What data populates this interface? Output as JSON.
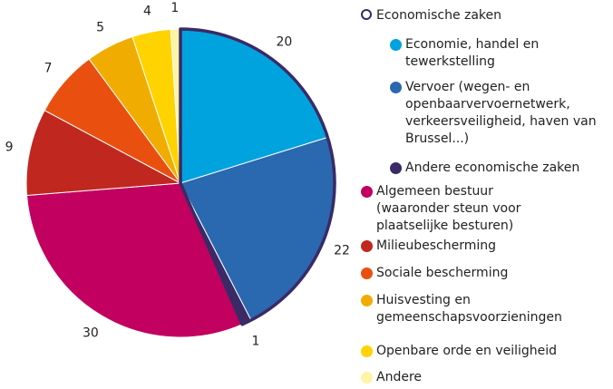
{
  "chart_data": {
    "type": "pie",
    "group_title": "Economische zaken",
    "categories": [
      "Economie, handel en tewerkstelling",
      "Vervoer (wegen- en openbaarvervoernetwerk, verkeersveiligheid, haven van Brussel...)",
      "Andere economische zaken",
      "Algemeen bestuur (waaronder steun voor plaatselijke besturen)",
      "Milieubescherming",
      "Sociale bescherming",
      "Huisvesting en gemeenschapsvoorzieningen",
      "Openbare orde en veiligheid",
      "Andere"
    ],
    "values": [
      20,
      22,
      1,
      30,
      9,
      7,
      5,
      4,
      1
    ],
    "colors": [
      "#00a3de",
      "#2a68b0",
      "#3a2a66",
      "#c2005f",
      "#c0281f",
      "#e9500f",
      "#f0ad00",
      "#ffd300",
      "#fff3a6"
    ],
    "grouped": [
      true,
      true,
      true,
      false,
      false,
      false,
      false,
      false,
      false
    ],
    "group_color": "#3a2a66"
  }
}
